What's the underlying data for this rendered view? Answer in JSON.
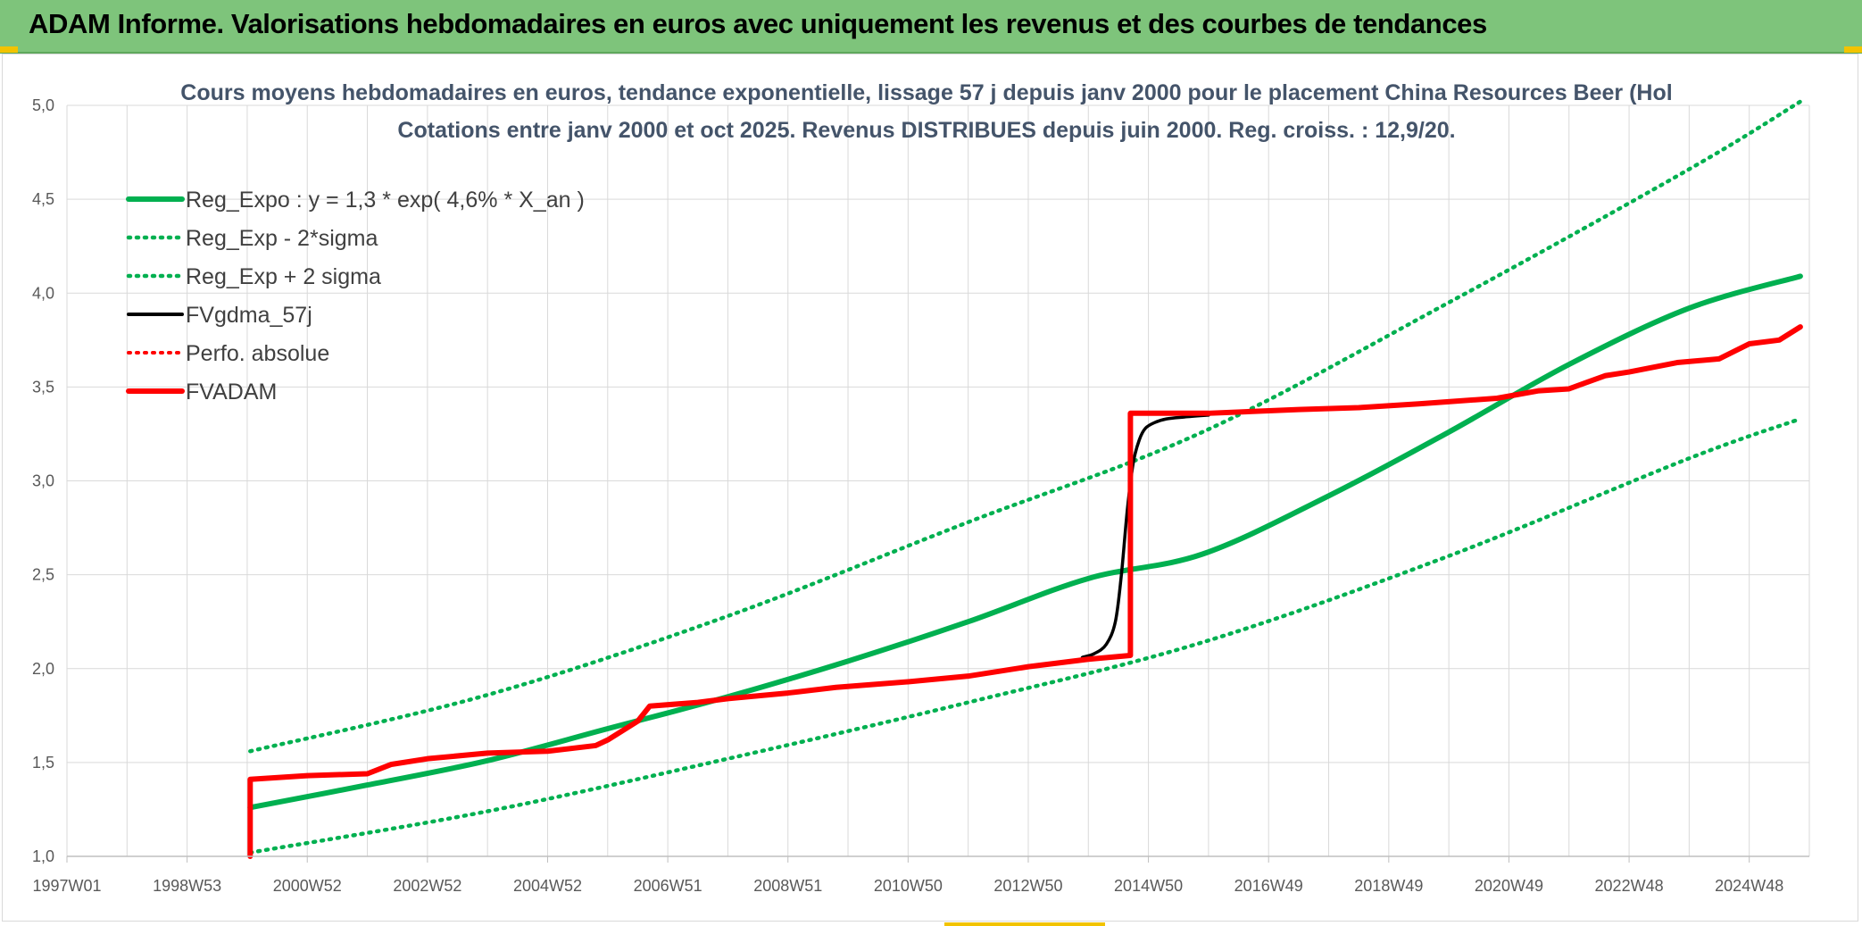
{
  "header": {
    "title": "ADAM Informe. Valorisations hebdomadaires en euros avec uniquement les revenus et des courbes de tendances"
  },
  "colors": {
    "banner": "#7ec47b",
    "trend_green": "#00b050",
    "price_black": "#000000",
    "adam_red": "#ff0000",
    "accent_yellow": "#f2c300"
  },
  "chart_data": {
    "type": "line",
    "title": "Cours moyens hebdomadaires en euros, tendance exponentielle, lissage 57 j depuis janv 2000 pour le placement China Resources Beer (Hol",
    "subtitle": "Cotations entre janv 2000 et oct 2025. Revenus DISTRIBUES depuis juin 2000. Reg. croiss. : 12,9/20.",
    "x_tick_labels": [
      "1997W01",
      "1998W53",
      "2000W52",
      "2002W52",
      "2004W52",
      "2006W51",
      "2008W51",
      "2010W50",
      "2012W50",
      "2014W50",
      "2016W49",
      "2018W49",
      "2020W49",
      "2022W48",
      "2024W48"
    ],
    "xlim": [
      1997.0,
      2026.0
    ],
    "ylim": [
      1.0,
      5.0
    ],
    "y_ticks": [
      "1,0",
      "1,5",
      "2,0",
      "2,5",
      "3,0",
      "3,5",
      "4,0",
      "4,5",
      "5,0"
    ],
    "grid": true,
    "legend_position": "top-left",
    "legend": [
      {
        "label": "Reg_Expo : y = 1,3 * exp( 4,6% *  X_an )",
        "style": "solid-green"
      },
      {
        "label": "Reg_Exp - 2*sigma",
        "style": "dotted-green"
      },
      {
        "label": "Reg_Exp + 2 sigma",
        "style": "dotted-green"
      },
      {
        "label": "FVgdma_57j",
        "style": "solid-black"
      },
      {
        "label": "Perfo. absolue",
        "style": "dotted-red"
      },
      {
        "label": "FVADAM",
        "style": "solid-red"
      }
    ],
    "series": [
      {
        "name": "Reg_Expo : y = 1,3 * exp( 4,6% *  X_an )",
        "color": "#00b050",
        "dash": "solid",
        "x": [
          2000.05,
          2002,
          2004,
          2006,
          2008,
          2010,
          2012,
          2014,
          2015.9,
          2018,
          2020,
          2022,
          2024,
          2025.85
        ],
        "y": [
          1.26,
          1.38,
          1.51,
          1.68,
          1.85,
          2.04,
          2.25,
          2.48,
          2.61,
          2.92,
          3.26,
          3.62,
          3.92,
          4.09
        ]
      },
      {
        "name": "Reg_Exp - 2*sigma",
        "color": "#00b050",
        "dash": "dotted",
        "x": [
          2000.05,
          2004,
          2008,
          2012,
          2015.9,
          2020,
          2024,
          2025.85
        ],
        "y": [
          1.02,
          1.24,
          1.52,
          1.82,
          2.14,
          2.6,
          3.12,
          3.33
        ]
      },
      {
        "name": "Reg_Exp + 2 sigma",
        "color": "#00b050",
        "dash": "dotted",
        "x": [
          2000.05,
          2004,
          2008,
          2012,
          2015.9,
          2020,
          2024,
          2025.85
        ],
        "y": [
          1.56,
          1.86,
          2.28,
          2.78,
          3.26,
          3.95,
          4.66,
          5.02
        ]
      },
      {
        "name": "FVgdma_57j",
        "color": "#000000",
        "dash": "solid",
        "x": [
          2013.9,
          2014.1,
          2014.3,
          2014.45,
          2014.55,
          2014.65,
          2014.75,
          2014.85,
          2014.95,
          2015.1,
          2015.3,
          2015.6,
          2016.0
        ],
        "y": [
          2.06,
          2.08,
          2.13,
          2.25,
          2.5,
          2.85,
          3.1,
          3.22,
          3.28,
          3.31,
          3.33,
          3.34,
          3.35
        ]
      },
      {
        "name": "Perfo. absolue",
        "color": "#ff0000",
        "dash": "dotted",
        "x": [
          2000.05,
          2025.85
        ],
        "y": [
          1.41,
          3.82
        ]
      },
      {
        "name": "FVADAM",
        "color": "#ff0000",
        "dash": "solid",
        "x": [
          2000.05,
          2000.05,
          2001.0,
          2002.0,
          2002.4,
          2003.0,
          2004.0,
          2005.0,
          2005.8,
          2006.0,
          2006.5,
          2006.7,
          2007.5,
          2008.0,
          2009.0,
          2009.8,
          2011.0,
          2012.0,
          2013.0,
          2014.0,
          2014.7,
          2014.7,
          2016.0,
          2017.5,
          2018.5,
          2019.5,
          2020.8,
          2021.5,
          2022.0,
          2022.6,
          2023.0,
          2023.8,
          2024.5,
          2025.0,
          2025.5,
          2025.85
        ],
        "y": [
          1.0,
          1.41,
          1.43,
          1.44,
          1.49,
          1.52,
          1.55,
          1.56,
          1.59,
          1.62,
          1.72,
          1.8,
          1.82,
          1.84,
          1.87,
          1.9,
          1.93,
          1.96,
          2.01,
          2.05,
          2.07,
          3.36,
          3.36,
          3.38,
          3.39,
          3.41,
          3.44,
          3.48,
          3.49,
          3.56,
          3.58,
          3.63,
          3.65,
          3.73,
          3.75,
          3.82
        ]
      }
    ]
  }
}
